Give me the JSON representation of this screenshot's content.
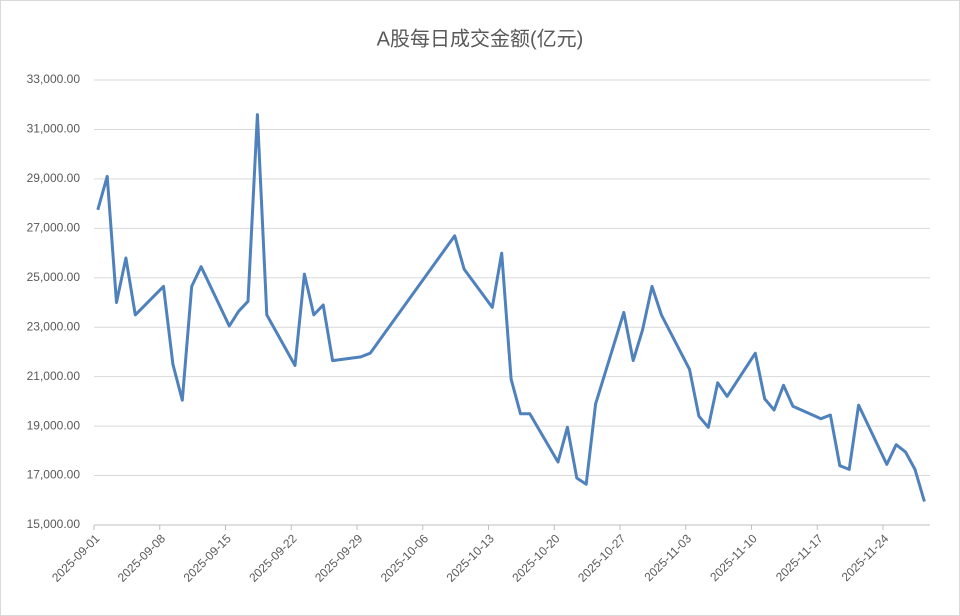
{
  "chart_data": {
    "type": "line",
    "title": "A股每日成交金额(亿元)",
    "x": [
      "2025-09-01",
      "2025-09-02",
      "2025-09-03",
      "2025-09-04",
      "2025-09-05",
      "2025-09-08",
      "2025-09-09",
      "2025-09-10",
      "2025-09-11",
      "2025-09-12",
      "2025-09-15",
      "2025-09-16",
      "2025-09-17",
      "2025-09-18",
      "2025-09-19",
      "2025-09-22",
      "2025-09-23",
      "2025-09-24",
      "2025-09-25",
      "2025-09-26",
      "2025-09-29",
      "2025-09-30",
      "2025-10-09",
      "2025-10-10",
      "2025-10-13",
      "2025-10-14",
      "2025-10-15",
      "2025-10-16",
      "2025-10-17",
      "2025-10-20",
      "2025-10-21",
      "2025-10-22",
      "2025-10-23",
      "2025-10-24",
      "2025-10-27",
      "2025-10-28",
      "2025-10-29",
      "2025-10-30",
      "2025-10-31",
      "2025-11-03",
      "2025-11-04",
      "2025-11-05",
      "2025-11-06",
      "2025-11-07",
      "2025-11-10",
      "2025-11-11",
      "2025-11-12",
      "2025-11-13",
      "2025-11-14",
      "2025-11-17",
      "2025-11-18",
      "2025-11-19",
      "2025-11-20",
      "2025-11-21",
      "2025-11-24",
      "2025-11-25",
      "2025-11-26",
      "2025-11-27",
      "2025-11-28"
    ],
    "series": [
      {
        "color": "#4f81bd",
        "values": [
          27750,
          29100,
          24000,
          25800,
          23500,
          24650,
          21500,
          20050,
          24650,
          25450,
          23050,
          23650,
          24050,
          31600,
          23500,
          21450,
          25150,
          23500,
          23900,
          21650,
          21800,
          21950,
          26700,
          25350,
          23800,
          26000,
          20900,
          19500,
          19500,
          17550,
          18950,
          16900,
          16650,
          19900,
          23600,
          21650,
          22900,
          24650,
          23500,
          21300,
          19400,
          18950,
          20750,
          20200,
          21950,
          20100,
          19650,
          20650,
          19800,
          19300,
          19450,
          17400,
          17250,
          19850,
          17450,
          18250,
          17950,
          17250,
          15950
        ]
      }
    ],
    "xlim": [
      "2025-09-01",
      "2025-11-28"
    ],
    "xticks": [
      "2025-09-01",
      "2025-09-08",
      "2025-09-15",
      "2025-09-22",
      "2025-09-29",
      "2025-10-06",
      "2025-10-13",
      "2025-10-20",
      "2025-10-27",
      "2025-11-03",
      "2025-11-10",
      "2025-11-17",
      "2025-11-24"
    ],
    "ylim": [
      15000,
      33000
    ],
    "yticks": [
      {
        "value": 15000,
        "label": "15,000.00"
      },
      {
        "value": 17000,
        "label": "17,000.00"
      },
      {
        "value": 19000,
        "label": "19,000.00"
      },
      {
        "value": 21000,
        "label": "21,000.00"
      },
      {
        "value": 23000,
        "label": "23,000.00"
      },
      {
        "value": 25000,
        "label": "25,000.00"
      },
      {
        "value": 27000,
        "label": "27,000.00"
      },
      {
        "value": 29000,
        "label": "29,000.00"
      },
      {
        "value": 31000,
        "label": "31,000.00"
      },
      {
        "value": 33000,
        "label": "33,000.00"
      }
    ],
    "grid": true
  }
}
